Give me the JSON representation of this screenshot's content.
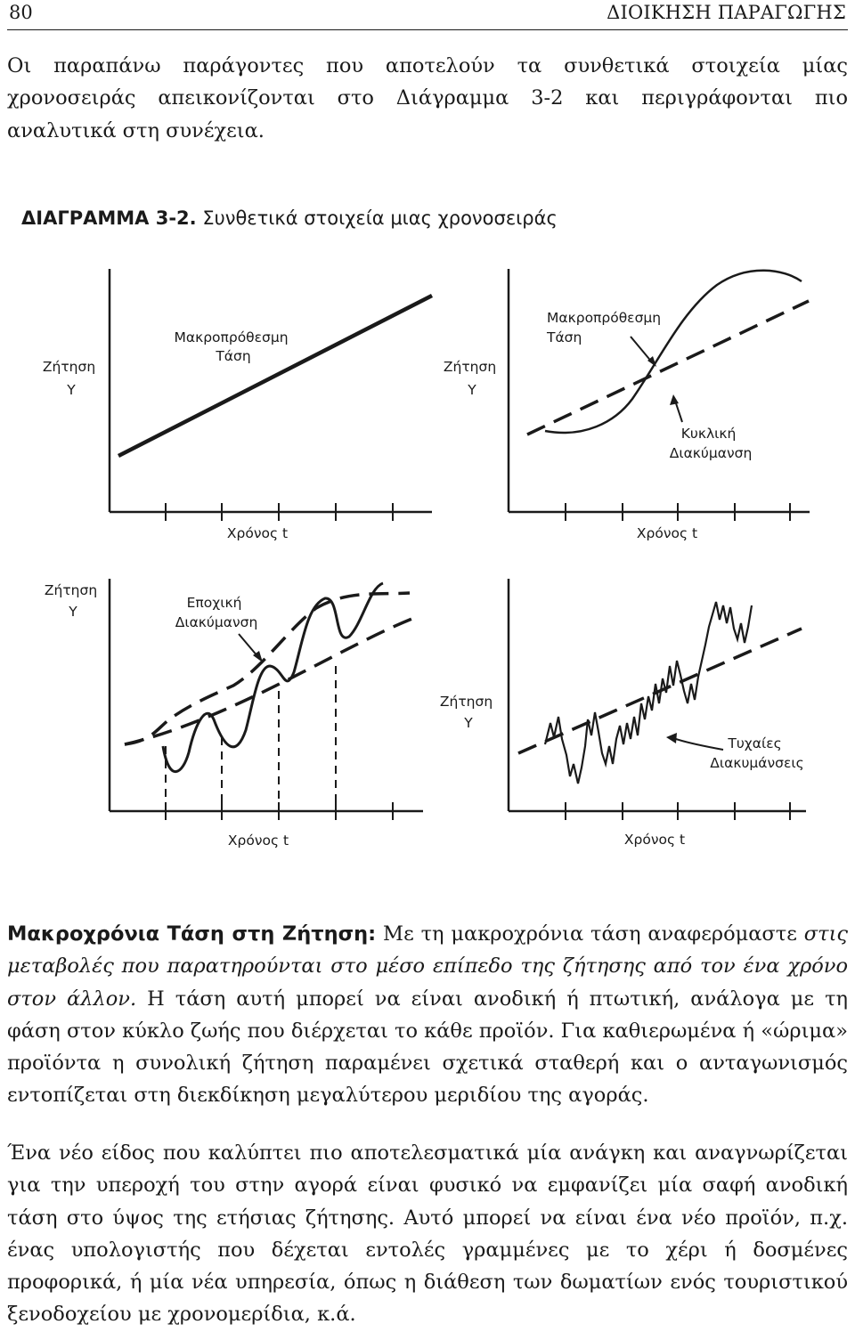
{
  "header": {
    "page_number": "80",
    "running_title": "ΔΙΟΙΚΗΣΗ ΠΑΡΑΓΩΓΗΣ"
  },
  "intro_paragraph": "Οι παραπάνω παράγοντες που αποτελούν τα συνθετικά στοιχεία μίας χρονοσειράς απεικονίζονται στο Διάγραμμα 3-2 και περιγράφονται πιο αναλυτικά στη συνέχεια.",
  "figure": {
    "caption_label": "ΔΙΑΓΡΑΜΜΑ 3-2.",
    "caption_text": "Συνθετικά στοιχεία μιας χρονοσειράς",
    "panels": [
      {
        "y_label": [
          "Ζήτηση",
          "Y"
        ],
        "x_label": "Χρόνος t",
        "annotations": [
          [
            "Μακροπρόθεσμη",
            "Τάση"
          ]
        ]
      },
      {
        "y_label": [
          "Ζήτηση",
          "Y"
        ],
        "x_label": "Χρόνος t",
        "annotations": [
          [
            "Μακροπρόθεσμη",
            "Τάση"
          ],
          [
            "Κυκλική",
            "Διακύμανση"
          ]
        ]
      },
      {
        "y_label": [
          "Ζήτηση",
          "Y"
        ],
        "x_label": "Χρόνος t",
        "annotations": [
          [
            "Εποχική",
            "Διακύμανση"
          ]
        ]
      },
      {
        "y_label": [
          "Ζήτηση",
          "Y"
        ],
        "x_label": "Χρόνος t",
        "annotations": [
          [
            "Τυχαίες",
            "Διακυμάνσεις"
          ]
        ]
      }
    ]
  },
  "section": {
    "heading": "Μακροχρόνια Τάση στη Ζήτηση:",
    "p1_lead": "Με τη μακροχρόνια τάση αναφερόμαστε",
    "p1_italic": "στις μεταβολές που παρατηρούνται στο μέσο επίπεδο της ζήτησης από τον ένα χρόνο στον άλλον.",
    "p1_rest": "Η τάση αυτή μπορεί να είναι ανοδική ή πτωτική, ανάλογα με τη φάση στον κύκλο ζωής που διέρχεται το κάθε προϊόν. Για καθιερωμένα ή «ώριμα» προϊόντα η συνολική ζήτηση παραμένει σχετικά σταθερή και ο ανταγωνισμός εντοπίζεται στη διεκδίκηση μεγαλύτερου μεριδίου της αγοράς.",
    "p2": "Ένα νέο είδος που καλύπτει πιο αποτελεσματικά μία ανάγκη και αναγνωρίζεται για την υπεροχή του στην αγορά είναι φυσικό να εμφανίζει μία σαφή ανοδική τάση στο ύψος της ετήσιας ζήτησης. Αυτό μπορεί να είναι ένα νέο προϊόν, π.χ. ένας υπολογιστής που δέχεται εντολές γραμμένες με το χέρι ή δοσμένες προφορικά, ή μία νέα υπηρεσία, όπως η διάθεση των δωματίων ενός τουριστικού ξενοδοχείου με χρονομερίδια, κ.ά."
  }
}
